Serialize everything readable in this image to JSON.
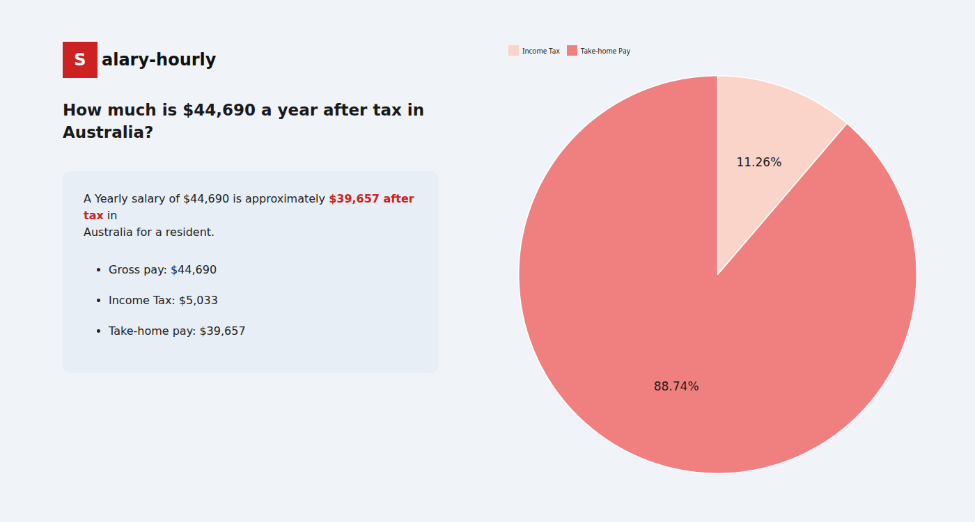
{
  "chart_data": {
    "type": "pie",
    "title": "How much is $44,690 a year after tax in\nAustralia?",
    "annotations": [
      "S",
      "alary-hourly",
      "A Yearly salary of $44,690 is approximately",
      "$39,657 after tax",
      "in",
      "Australia for a resident.",
      "Gross pay: $44,690",
      "Income Tax: $5,033",
      "Take-home pay: $39,657"
    ],
    "categories": [
      "Income Tax",
      "Take-home Pay"
    ],
    "values": [
      11.26,
      88.74
    ],
    "value_labels": [
      "11.26%",
      "88.74%"
    ],
    "colors": [
      "#fad4c8",
      "#f08080"
    ],
    "data_labels": true,
    "legend": "top"
  }
}
